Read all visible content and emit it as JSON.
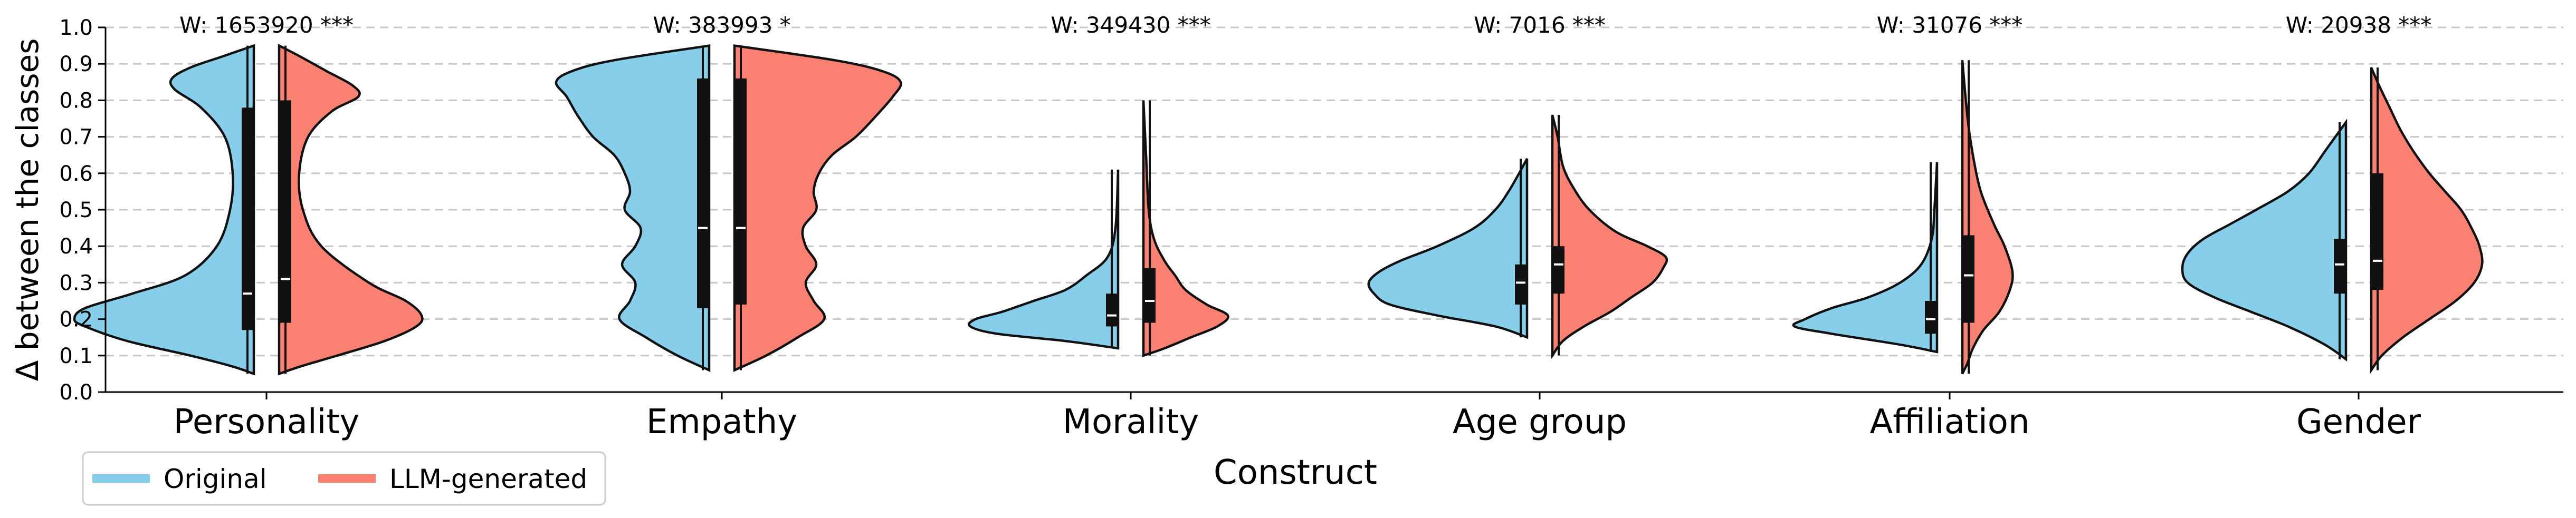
{
  "chart_data": {
    "type": "violin",
    "title": "",
    "xlabel": "Construct",
    "ylabel": "Δ between the classes",
    "ylim": [
      0,
      1.0
    ],
    "yticks": [
      "0.0",
      "0.1",
      "0.2",
      "0.3",
      "0.4",
      "0.5",
      "0.6",
      "0.7",
      "0.8",
      "0.9",
      "1.0"
    ],
    "grid": "horizontal dashed",
    "legend_position": "bottom-left",
    "categories": [
      "Personality",
      "Empathy",
      "Morality",
      "Age group",
      "Affiliation",
      "Gender"
    ],
    "wilcoxon_labels": [
      "W: 1653920 ***",
      "W: 383993 *",
      "W: 349430 ***",
      "W: 7016 ***",
      "W: 31076 ***",
      "W: 20938 ***"
    ],
    "series": [
      {
        "name": "Original",
        "color": "#87ceeb",
        "stats": [
          {
            "min": 0.05,
            "q1": 0.17,
            "median": 0.27,
            "q3": 0.78,
            "max": 0.95
          },
          {
            "min": 0.06,
            "q1": 0.23,
            "median": 0.45,
            "q3": 0.86,
            "max": 0.95
          },
          {
            "min": 0.12,
            "q1": 0.18,
            "median": 0.21,
            "q3": 0.27,
            "max": 0.61
          },
          {
            "min": 0.15,
            "q1": 0.24,
            "median": 0.3,
            "q3": 0.35,
            "max": 0.64
          },
          {
            "min": 0.11,
            "q1": 0.16,
            "median": 0.2,
            "q3": 0.25,
            "max": 0.63
          },
          {
            "min": 0.09,
            "q1": 0.27,
            "median": 0.35,
            "q3": 0.42,
            "max": 0.74
          }
        ]
      },
      {
        "name": "LLM-generated",
        "color": "#fa8072",
        "stats": [
          {
            "min": 0.05,
            "q1": 0.19,
            "median": 0.31,
            "q3": 0.8,
            "max": 0.95
          },
          {
            "min": 0.06,
            "q1": 0.24,
            "median": 0.45,
            "q3": 0.86,
            "max": 0.95
          },
          {
            "min": 0.1,
            "q1": 0.19,
            "median": 0.25,
            "q3": 0.34,
            "max": 0.8
          },
          {
            "min": 0.1,
            "q1": 0.27,
            "median": 0.35,
            "q3": 0.4,
            "max": 0.76
          },
          {
            "min": 0.05,
            "q1": 0.19,
            "median": 0.32,
            "q3": 0.43,
            "max": 0.91
          },
          {
            "min": 0.06,
            "q1": 0.28,
            "median": 0.36,
            "q3": 0.6,
            "max": 0.89
          }
        ]
      }
    ]
  }
}
